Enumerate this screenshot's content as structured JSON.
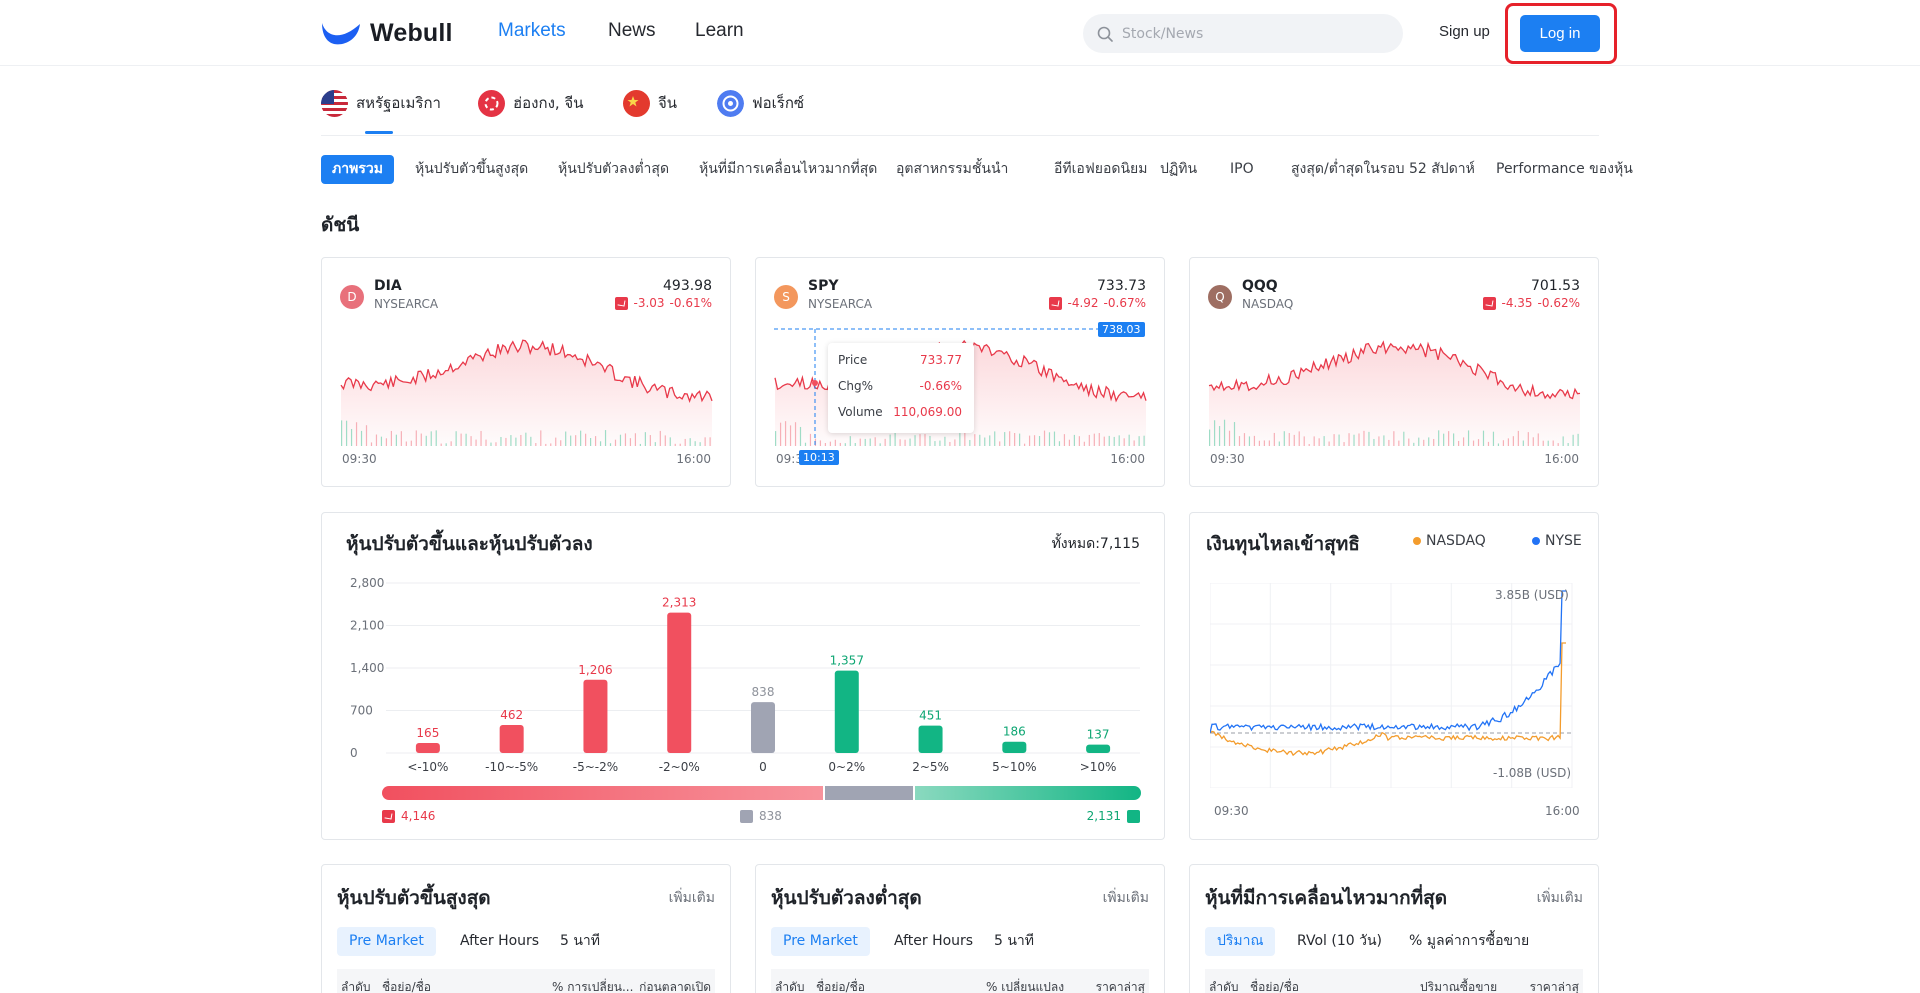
{
  "header": {
    "logo_text": "Webull",
    "nav": [
      "Markets",
      "News",
      "Learn"
    ],
    "search_placeholder": "Stock/News",
    "signup": "Sign up",
    "login": "Log in"
  },
  "regions": [
    "สหรัฐอเมริกา",
    "ฮ่องกง, จีน",
    "จีน",
    "ฟอเร็กซ์"
  ],
  "sub_tabs": [
    "ภาพรวม",
    "หุ้นปรับตัวขึ้นสูงสุด",
    "หุ้นปรับตัวลงต่ำสุด",
    "หุ้นที่มีการเคลื่อนไหวมากที่สุด",
    "อุตสาหกรรมชั้นนำ",
    "อีทีเอฟยอดนิยม",
    "ปฏิทิน",
    "IPO",
    "สูงสุด/ต่ำสุดในรอบ 52 สัปดาห์",
    "Performance ของหุ้น"
  ],
  "section_title": "ดัชนี",
  "indices": [
    {
      "avatar": "D",
      "symbol": "DIA",
      "exchange": "NYSEARCA",
      "price": "493.98",
      "change": "-3.03",
      "change_pct": "-0.61%",
      "start": "09:30",
      "end": "16:00",
      "color": "#e8707b"
    },
    {
      "avatar": "S",
      "symbol": "SPY",
      "exchange": "NYSEARCA",
      "price": "733.73",
      "change": "-4.92",
      "change_pct": "-0.67%",
      "start": "09:30",
      "end": "16:00",
      "color": "#f3975d"
    },
    {
      "avatar": "Q",
      "symbol": "QQQ",
      "exchange": "NASDAQ",
      "price": "701.53",
      "change": "-4.35",
      "change_pct": "-0.62%",
      "start": "09:30",
      "end": "16:00",
      "color": "#9e6e62"
    }
  ],
  "spy_tooltip": {
    "price_label": "Price",
    "price": "733.77",
    "chg_label": "Chg%",
    "chg": "-0.66%",
    "volume_label": "Volume",
    "volume": "110,069.00",
    "crosshair_price": "738.03",
    "crosshair_time": "10:13"
  },
  "gainers_losers": {
    "title": "หุ้นปรับตัวขึ้นและหุ้นปรับตัวลง",
    "total": "ทั้งหมด:7,115",
    "down_total": "4,146",
    "flat_total": "838",
    "up_total": "2,131"
  },
  "chart_data": [
    {
      "type": "bar",
      "categories": [
        "<-10%",
        "-10~-5%",
        "-5~-2%",
        "-2~0%",
        "0",
        "0~2%",
        "2~5%",
        "5~10%",
        ">10%"
      ],
      "values": [
        165,
        462,
        1206,
        2313,
        838,
        1357,
        451,
        186,
        137
      ],
      "bar_colors": [
        "#f1505f",
        "#f1505f",
        "#f1505f",
        "#f1505f",
        "#a0a4b3",
        "#12b584",
        "#12b584",
        "#12b584",
        "#12b584"
      ],
      "label_colors": [
        "#e8394a",
        "#e8394a",
        "#e8394a",
        "#e8394a",
        "#8e929b",
        "#0ea673",
        "#0ea673",
        "#0ea673",
        "#0ea673"
      ],
      "yticks": [
        "0",
        "700",
        "1,400",
        "2,100",
        "2,800"
      ],
      "ylim": [
        0,
        2800
      ]
    },
    {
      "type": "line",
      "title": "เงินทุนไหลเข้าสุทธิ",
      "series": [
        {
          "name": "NASDAQ",
          "color": "#f39c2d"
        },
        {
          "name": "NYSE",
          "color": "#2273f5"
        }
      ],
      "max_label": "3.85B (USD)",
      "min_label": "-1.08B (USD)",
      "x_start": "09:30",
      "x_end": "16:00"
    }
  ],
  "lists": [
    {
      "title": "หุ้นปรับตัวขึ้นสูงสุด",
      "more": "เพิ่มเติม",
      "pills": [
        "Pre Market",
        "After Hours",
        "5 นาที"
      ],
      "cols": [
        "ลำดับ",
        "ชื่อย่อ/ชื่อ",
        "% การเปลี่ยน...",
        "ก่อนตลาดเปิด"
      ]
    },
    {
      "title": "หุ้นปรับตัวลงต่ำสุด",
      "more": "เพิ่มเติม",
      "pills": [
        "Pre Market",
        "After Hours",
        "5 นาที"
      ],
      "cols": [
        "ลำดับ",
        "ชื่อย่อ/ชื่อ",
        "% เปลี่ยนแปลง",
        "ราคาล่าสุ"
      ]
    },
    {
      "title": "หุ้นที่มีการเคลื่อนไหวมากที่สุด",
      "more": "เพิ่มเติม",
      "pills": [
        "ปริมาณ",
        "RVol (10 วัน)",
        "% มูลค่าการซื้อขาย"
      ],
      "cols": [
        "ลำดับ",
        "ชื่อย่อ/ชื่อ",
        "ปริมาณซื้อขาย",
        "ราคาล่าสุ"
      ]
    }
  ],
  "colors": {
    "accent": "#1c7ff2",
    "down": "#e8394a",
    "up": "#12b584",
    "flat": "#a0a4b3",
    "highlight_box": "#e6212a"
  }
}
